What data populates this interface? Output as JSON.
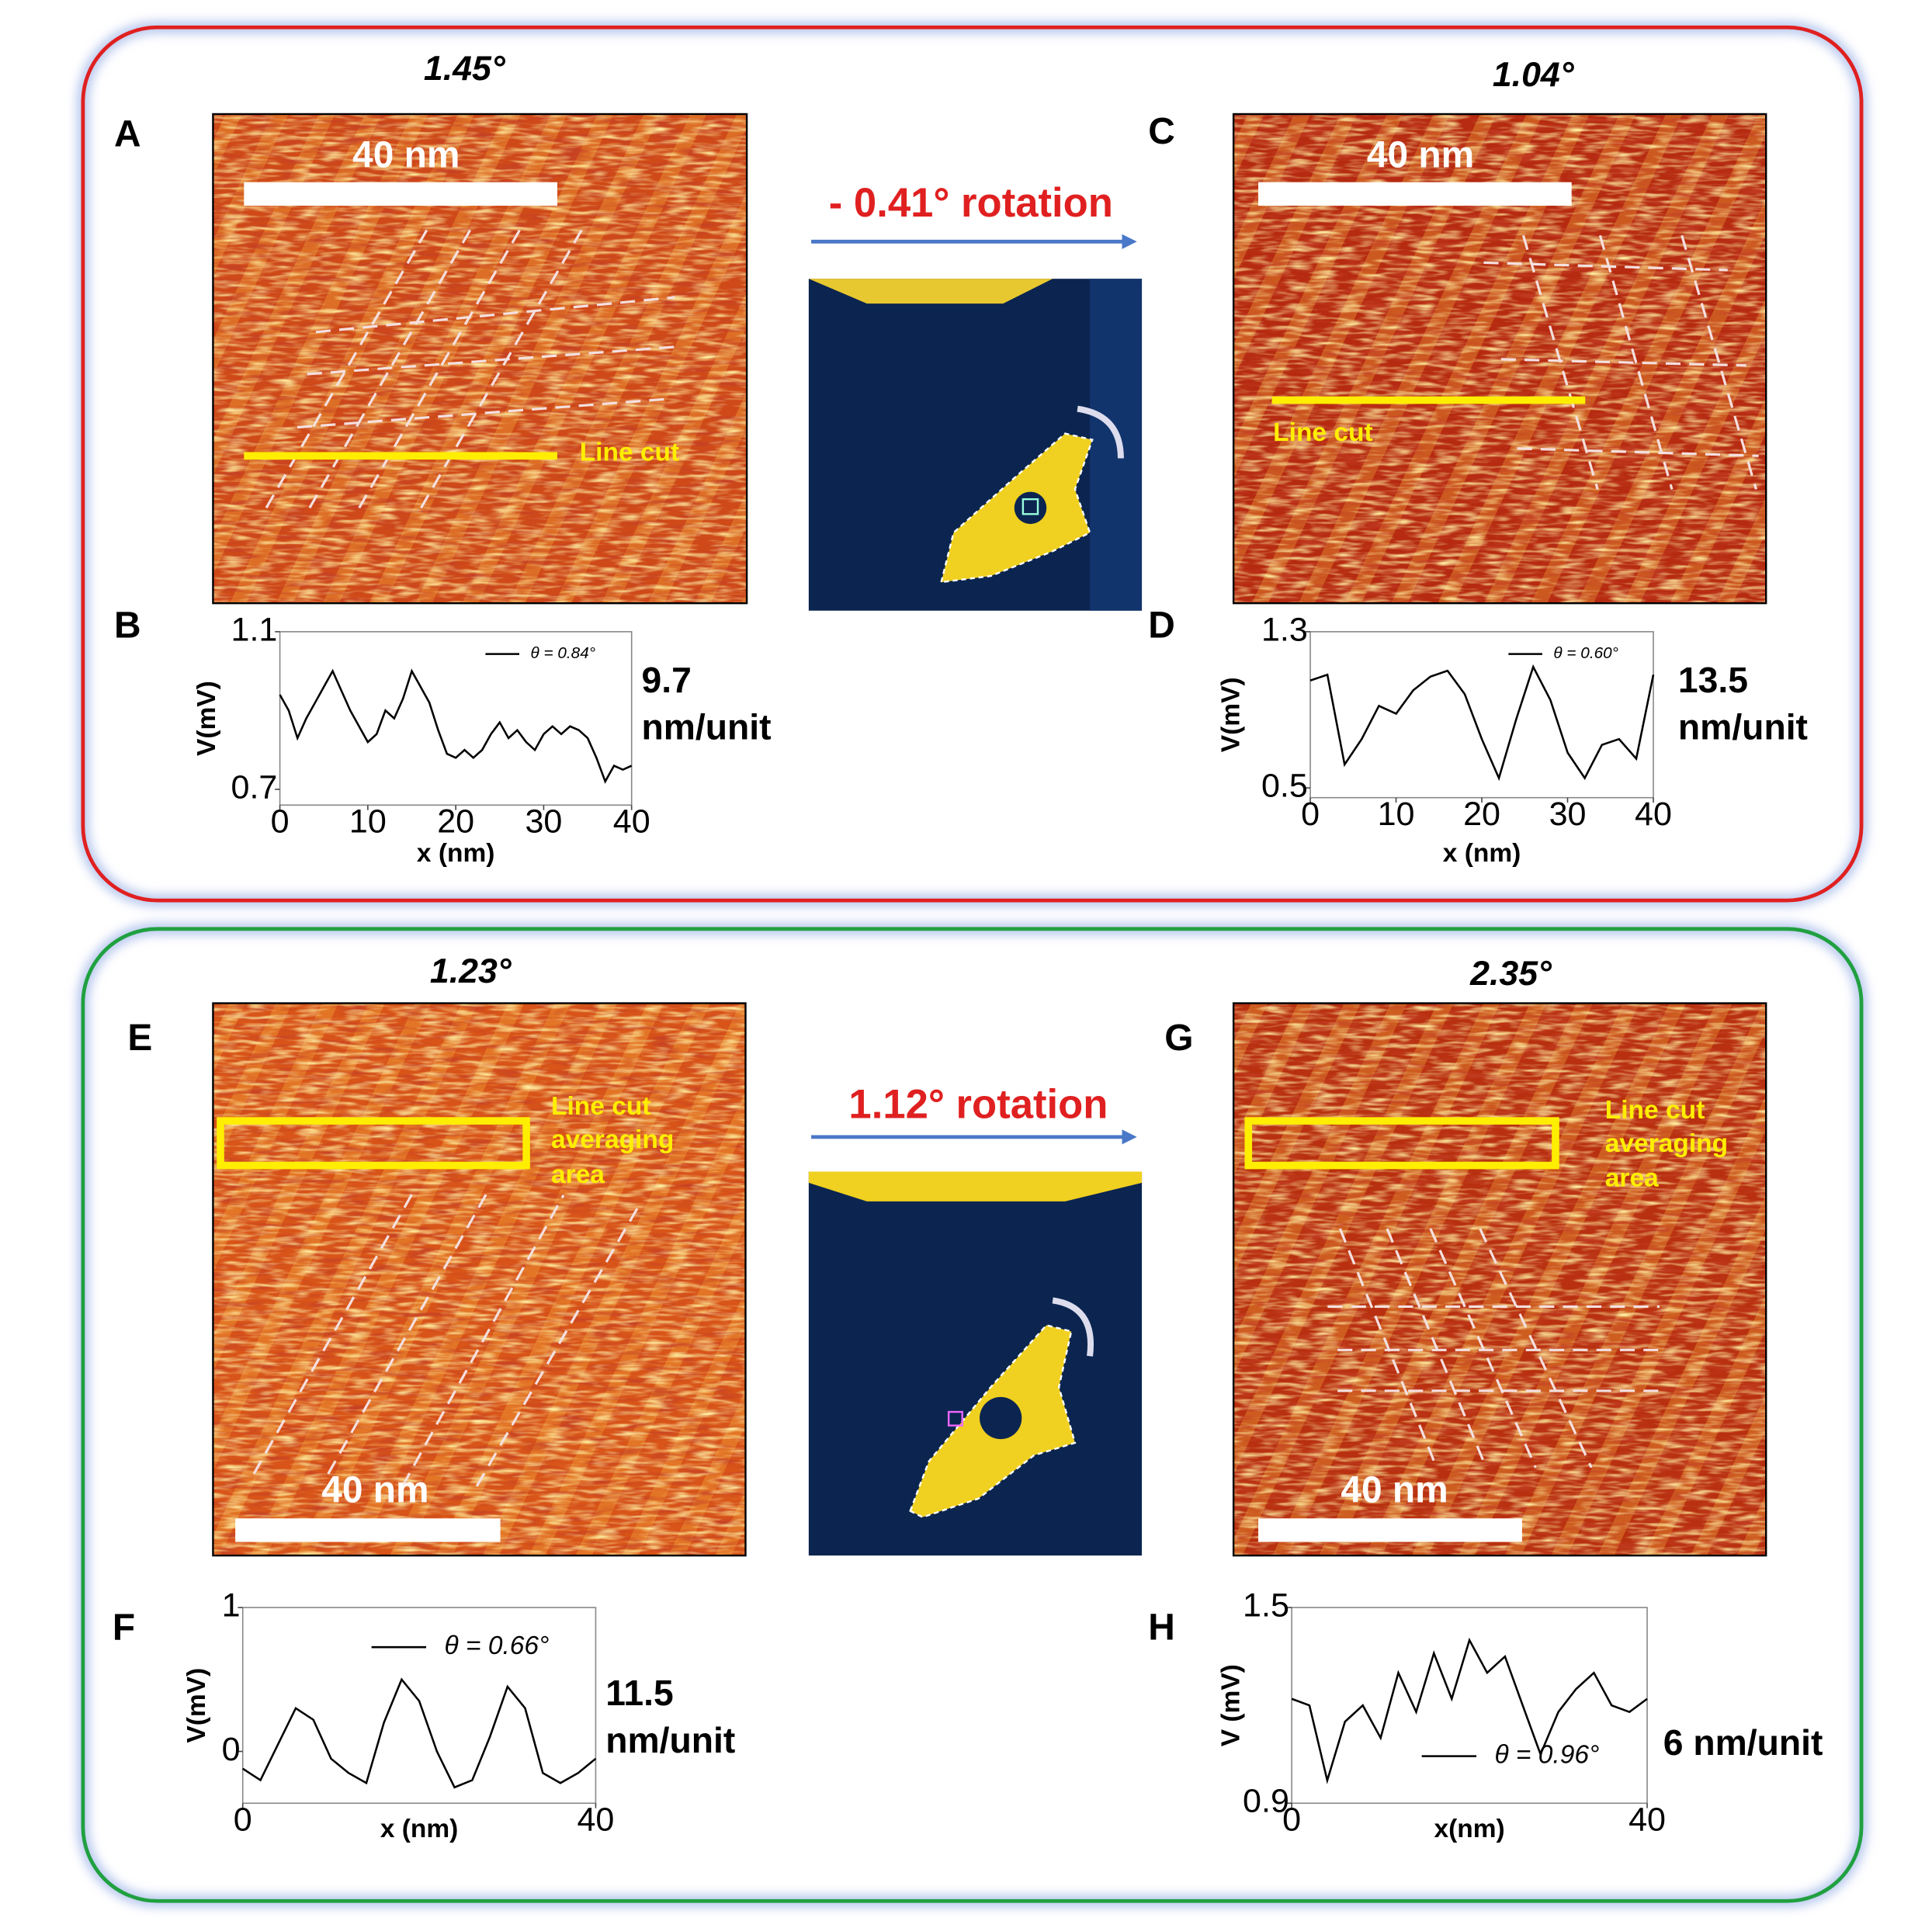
{
  "panels": [
    {
      "letter": "A",
      "angle": "1.45°",
      "scale_bar": "40 nm",
      "annotation": "Line cut"
    },
    {
      "letter": "C",
      "angle": "1.04°",
      "scale_bar": "40 nm",
      "annotation": "Line cut"
    },
    {
      "letter": "E",
      "angle": "1.23°",
      "scale_bar": "40 nm",
      "annotation": "Line cut averaging area"
    },
    {
      "letter": "G",
      "angle": "2.35°",
      "scale_bar": "40 nm",
      "annotation": "Line cut averaging area"
    }
  ],
  "rotations": [
    "- 0.41° rotation",
    "1.12° rotation"
  ],
  "chart_data": [
    {
      "type": "line",
      "panel": "B",
      "xlabel": "x (nm)",
      "ylabel": "V(mV)",
      "annotation": "9.7 nm/unit",
      "x": [
        0,
        1,
        2,
        3,
        4,
        5,
        6,
        7,
        8,
        9,
        10,
        11,
        12,
        13,
        14,
        15,
        16,
        17,
        18,
        19,
        20,
        21,
        22,
        23,
        24,
        25,
        26,
        27,
        28,
        29,
        30,
        31,
        32,
        33,
        34,
        35,
        36,
        37,
        38,
        39,
        40
      ],
      "series": [
        {
          "name": "θ = 0.84°",
          "color": "#000000",
          "values": [
            0.94,
            0.9,
            0.83,
            0.88,
            0.92,
            0.96,
            1.0,
            0.95,
            0.9,
            0.86,
            0.82,
            0.84,
            0.9,
            0.88,
            0.93,
            1.0,
            0.96,
            0.92,
            0.85,
            0.79,
            0.78,
            0.8,
            0.78,
            0.8,
            0.84,
            0.87,
            0.83,
            0.85,
            0.82,
            0.8,
            0.84,
            0.86,
            0.84,
            0.86,
            0.85,
            0.83,
            0.78,
            0.72,
            0.76,
            0.75,
            0.76
          ]
        }
      ],
      "xlim": [
        0,
        40
      ],
      "ylim": [
        0.66,
        1.1
      ],
      "xticks": [
        0,
        10,
        20,
        30,
        40
      ],
      "yticks": [
        0.7,
        1.1
      ],
      "legend": "upper right"
    },
    {
      "type": "line",
      "panel": "D",
      "xlabel": "x (nm)",
      "ylabel": "V(mV)",
      "annotation": "13.5 nm/unit",
      "x": [
        0,
        2,
        4,
        6,
        8,
        10,
        12,
        14,
        16,
        18,
        20,
        22,
        24,
        26,
        28,
        30,
        32,
        34,
        36,
        38,
        40
      ],
      "series": [
        {
          "name": "θ = 0.60°",
          "color": "#000000",
          "values": [
            1.05,
            1.08,
            0.62,
            0.75,
            0.92,
            0.88,
            1.0,
            1.07,
            1.1,
            0.98,
            0.75,
            0.55,
            0.85,
            1.12,
            0.95,
            0.68,
            0.55,
            0.72,
            0.75,
            0.65,
            1.08
          ]
        }
      ],
      "xlim": [
        0,
        40
      ],
      "ylim": [
        0.45,
        1.3
      ],
      "xticks": [
        0,
        10,
        20,
        30,
        40
      ],
      "yticks": [
        0.5,
        1.3
      ],
      "legend": "upper right"
    },
    {
      "type": "line",
      "panel": "F",
      "xlabel": "x (nm)",
      "ylabel": "V(mV)",
      "annotation": "11.5 nm/unit",
      "x": [
        0,
        2,
        4,
        6,
        8,
        10,
        12,
        14,
        16,
        18,
        20,
        22,
        24,
        26,
        28,
        30,
        32,
        34,
        36,
        38,
        40
      ],
      "series": [
        {
          "name": "θ = 0.66°",
          "color": "#000000",
          "values": [
            -0.12,
            -0.2,
            0.05,
            0.3,
            0.22,
            -0.05,
            -0.15,
            -0.22,
            0.2,
            0.5,
            0.35,
            0.0,
            -0.25,
            -0.2,
            0.1,
            0.45,
            0.3,
            -0.15,
            -0.22,
            -0.15,
            -0.05
          ]
        }
      ],
      "xlim": [
        0,
        40
      ],
      "ylim": [
        -0.36,
        1
      ],
      "xticks": [
        0,
        40
      ],
      "yticks": [
        0,
        1
      ],
      "legend": "upper right"
    },
    {
      "type": "line",
      "panel": "H",
      "xlabel": "x(nm)",
      "ylabel": "V (mV)",
      "annotation": "6 nm/unit",
      "x": [
        0,
        2,
        4,
        6,
        8,
        10,
        12,
        14,
        16,
        18,
        20,
        22,
        24,
        26,
        28,
        30,
        32,
        34,
        36,
        38,
        40
      ],
      "series": [
        {
          "name": "θ = 0.96°",
          "color": "#000000",
          "values": [
            1.22,
            1.2,
            0.97,
            1.15,
            1.2,
            1.1,
            1.3,
            1.18,
            1.36,
            1.22,
            1.4,
            1.3,
            1.35,
            1.2,
            1.05,
            1.18,
            1.25,
            1.3,
            1.2,
            1.18,
            1.22
          ]
        }
      ],
      "xlim": [
        0,
        40
      ],
      "ylim": [
        0.9,
        1.5
      ],
      "xticks": [
        0,
        40
      ],
      "yticks": [
        0.9,
        1.5
      ],
      "legend": "lower center"
    }
  ]
}
